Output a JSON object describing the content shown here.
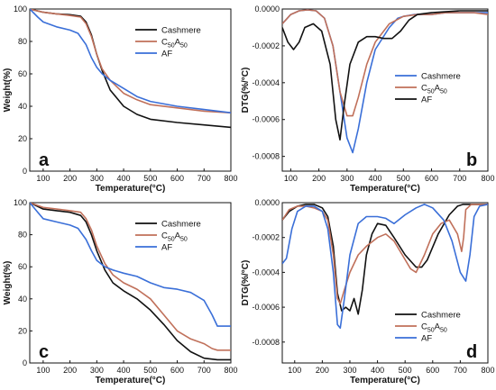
{
  "chart_data": [
    {
      "type": "line",
      "panel_label": "a",
      "xlabel": "Temperature(°C)",
      "ylabel": "Weight(%)",
      "xlim": [
        50,
        800
      ],
      "ylim": [
        0,
        100
      ],
      "xticks": [
        100,
        200,
        300,
        400,
        500,
        600,
        700,
        800
      ],
      "yticks": [
        0,
        20,
        40,
        60,
        80,
        100
      ],
      "legend_position": "top-right",
      "series": [
        {
          "name": "Cashmere",
          "color": "#111111",
          "x": [
            50,
            100,
            150,
            200,
            240,
            260,
            280,
            300,
            320,
            350,
            400,
            450,
            500,
            600,
            700,
            800
          ],
          "y": [
            100,
            98,
            97,
            96.5,
            95.5,
            92,
            84,
            72,
            62,
            50,
            40,
            35,
            32,
            30,
            28.5,
            27
          ]
        },
        {
          "name": "C50A50",
          "name_main": "C",
          "name_sub1": "50",
          "name_mid": "A",
          "name_sub2": "50",
          "color": "#c0705a",
          "x": [
            50,
            100,
            150,
            200,
            240,
            260,
            280,
            300,
            320,
            350,
            400,
            450,
            500,
            600,
            700,
            800
          ],
          "y": [
            100,
            98,
            97,
            96,
            95,
            91,
            83,
            72,
            63,
            56,
            48,
            44,
            41,
            39,
            37,
            36
          ]
        },
        {
          "name": "AF",
          "color": "#3a6fd8",
          "x": [
            50,
            80,
            100,
            150,
            200,
            230,
            260,
            280,
            300,
            320,
            350,
            400,
            450,
            500,
            600,
            700,
            800
          ],
          "y": [
            100,
            95,
            92,
            89,
            87,
            85,
            78,
            70,
            64,
            60,
            56,
            51,
            46,
            43,
            40,
            38,
            36
          ]
        }
      ]
    },
    {
      "type": "line",
      "panel_label": "b",
      "xlabel": "Temperature(°C)",
      "ylabel": "DTG(%/°C)",
      "xlim": [
        70,
        800
      ],
      "ylim": [
        -0.00088,
        0
      ],
      "xticks": [
        100,
        200,
        300,
        400,
        500,
        600,
        700,
        800
      ],
      "yticks": [
        0.0,
        -0.0002,
        -0.0004,
        -0.0006,
        -0.0008
      ],
      "ytick_labels": [
        "0.0000",
        "-0.0002",
        "-0.0004",
        "-0.0006",
        "-0.0008"
      ],
      "legend_position": "middle-right",
      "series": [
        {
          "name": "Cashmere",
          "color": "#3a6fd8",
          "x": [
            70,
            100,
            130,
            160,
            190,
            220,
            250,
            280,
            300,
            320,
            340,
            370,
            400,
            450,
            480,
            500,
            540,
            600,
            650,
            700,
            750,
            800
          ],
          "y": [
            -8e-05,
            -3e-05,
            -1e-05,
            -5e-06,
            -1e-05,
            -5e-05,
            -0.0002,
            -0.0005,
            -0.0007,
            -0.00078,
            -0.00065,
            -0.0004,
            -0.00022,
            -0.0001,
            -5e-05,
            -4e-05,
            -3e-05,
            -3e-05,
            -2e-05,
            -2e-05,
            -2e-05,
            -2e-05
          ]
        },
        {
          "name": "C50A50",
          "name_main": "C",
          "name_sub1": "50",
          "name_mid": "A",
          "name_sub2": "50",
          "color": "#c0705a",
          "x": [
            70,
            100,
            130,
            160,
            190,
            220,
            250,
            275,
            300,
            320,
            340,
            370,
            400,
            450,
            500,
            550,
            600,
            650,
            700,
            750,
            800
          ],
          "y": [
            -8e-05,
            -3e-05,
            -1e-05,
            -5e-06,
            -1e-05,
            -5e-05,
            -0.0002,
            -0.00045,
            -0.00058,
            -0.00058,
            -0.00048,
            -0.0003,
            -0.00018,
            -8e-05,
            -4e-05,
            -3e-05,
            -3e-05,
            -2e-05,
            -2e-05,
            -2e-05,
            -3e-05
          ]
        },
        {
          "name": "AF",
          "color": "#111111",
          "x": [
            70,
            90,
            110,
            130,
            150,
            180,
            210,
            240,
            260,
            275,
            290,
            310,
            340,
            370,
            400,
            430,
            460,
            490,
            520,
            550,
            600,
            700,
            800
          ],
          "y": [
            -0.0001,
            -0.00018,
            -0.00022,
            -0.00018,
            -0.0001,
            -8e-05,
            -0.00012,
            -0.0003,
            -0.0006,
            -0.00071,
            -0.00052,
            -0.0003,
            -0.00018,
            -0.00015,
            -0.00015,
            -0.00016,
            -0.00016,
            -0.00012,
            -6e-05,
            -3e-05,
            -2e-05,
            -1e-05,
            -1e-05
          ]
        }
      ]
    },
    {
      "type": "line",
      "panel_label": "c",
      "xlabel": "Temperature(°C)",
      "ylabel": "Weight(%)",
      "xlim": [
        50,
        800
      ],
      "ylim": [
        0,
        100
      ],
      "xticks": [
        100,
        200,
        300,
        400,
        500,
        600,
        700,
        800
      ],
      "yticks": [
        0,
        20,
        40,
        60,
        80,
        100
      ],
      "legend_position": "top-right",
      "series": [
        {
          "name": "Cashmere",
          "color": "#111111",
          "x": [
            50,
            100,
            150,
            200,
            240,
            260,
            280,
            300,
            330,
            360,
            400,
            450,
            500,
            550,
            600,
            650,
            700,
            750,
            800
          ],
          "y": [
            100,
            96,
            95,
            94,
            92,
            88,
            80,
            70,
            58,
            50,
            45,
            40,
            33,
            24,
            14,
            7,
            3,
            2,
            2
          ]
        },
        {
          "name": "C50A50",
          "name_main": "C",
          "name_sub1": "50",
          "name_mid": "A",
          "name_sub2": "50",
          "color": "#c0705a",
          "x": [
            50,
            100,
            150,
            200,
            240,
            260,
            280,
            300,
            330,
            360,
            400,
            450,
            500,
            550,
            600,
            650,
            700,
            730,
            750,
            800
          ],
          "y": [
            100,
            97,
            96,
            95,
            94,
            90,
            83,
            73,
            62,
            55,
            50,
            46,
            40,
            30,
            20,
            15,
            12,
            9,
            8,
            8
          ]
        },
        {
          "name": "AF",
          "color": "#3a6fd8",
          "x": [
            50,
            80,
            100,
            150,
            200,
            230,
            260,
            280,
            300,
            330,
            360,
            400,
            450,
            500,
            550,
            600,
            650,
            700,
            730,
            750,
            800
          ],
          "y": [
            100,
            94,
            90,
            88,
            86,
            84,
            77,
            70,
            64,
            60,
            58,
            56,
            54,
            50,
            47,
            46,
            44,
            39,
            30,
            23,
            23
          ]
        }
      ]
    },
    {
      "type": "line",
      "panel_label": "d",
      "xlabel": "Temperature(°C)",
      "ylabel": "DTG(%/°C)",
      "xlim": [
        55,
        800
      ],
      "ylim": [
        -0.00092,
        0
      ],
      "xticks": [
        100,
        200,
        300,
        400,
        500,
        600,
        700,
        800
      ],
      "yticks": [
        0.0,
        -0.0002,
        -0.0004,
        -0.0006,
        -0.0008
      ],
      "ytick_labels": [
        "0.0000",
        "-0.0002",
        "-0.0004",
        "-0.0006",
        "-0.0008"
      ],
      "legend_position": "bottom-right",
      "series": [
        {
          "name": "Cashmere",
          "color": "#111111",
          "x": [
            55,
            80,
            110,
            140,
            170,
            200,
            220,
            240,
            255,
            270,
            285,
            300,
            315,
            330,
            345,
            360,
            380,
            400,
            430,
            460,
            500,
            540,
            560,
            580,
            620,
            660,
            690,
            710,
            730,
            760,
            800
          ],
          "y": [
            -0.0001,
            -5e-05,
            -2e-05,
            -1e-05,
            -1e-05,
            -3e-05,
            -8e-05,
            -0.00025,
            -0.00052,
            -0.00062,
            -0.0006,
            -0.00062,
            -0.00055,
            -0.00064,
            -0.0005,
            -0.0003,
            -0.00018,
            -0.00012,
            -0.00013,
            -0.0002,
            -0.0003,
            -0.00037,
            -0.00037,
            -0.00033,
            -0.00018,
            -7e-05,
            -2e-05,
            -1e-05,
            -1e-05,
            -1e-05,
            -1e-05
          ]
        },
        {
          "name": "C50A50",
          "name_main": "C",
          "name_sub1": "50",
          "name_mid": "A",
          "name_sub2": "50",
          "color": "#c0705a",
          "x": [
            55,
            80,
            110,
            140,
            170,
            200,
            220,
            240,
            255,
            265,
            280,
            300,
            330,
            360,
            400,
            430,
            460,
            490,
            520,
            540,
            570,
            600,
            630,
            660,
            690,
            705,
            712,
            720,
            740,
            770,
            800
          ],
          "y": [
            -0.0001,
            -4e-05,
            -2e-05,
            -2e-05,
            -3e-05,
            -5e-05,
            -0.0001,
            -0.0003,
            -0.00055,
            -0.00058,
            -0.0005,
            -0.0004,
            -0.0003,
            -0.00025,
            -0.0002,
            -0.00018,
            -0.00022,
            -0.0003,
            -0.00038,
            -0.0004,
            -0.0003,
            -0.00018,
            -0.00012,
            -0.0001,
            -0.00018,
            -0.00028,
            -0.0002,
            -4e-05,
            -1e-05,
            -1e-05,
            -1e-05
          ]
        },
        {
          "name": "AF",
          "color": "#3a6fd8",
          "x": [
            55,
            70,
            90,
            110,
            140,
            170,
            200,
            220,
            240,
            255,
            265,
            280,
            300,
            330,
            360,
            400,
            430,
            460,
            500,
            540,
            570,
            600,
            640,
            670,
            700,
            720,
            735,
            750,
            770,
            800
          ],
          "y": [
            -0.00035,
            -0.00032,
            -0.00015,
            -5e-05,
            -2e-05,
            -2e-05,
            -5e-05,
            -0.00015,
            -0.0004,
            -0.0007,
            -0.00072,
            -0.00055,
            -0.0003,
            -0.00012,
            -8e-05,
            -8e-05,
            -9e-05,
            -0.00012,
            -7e-05,
            -3e-05,
            -1e-05,
            -3e-05,
            -0.0001,
            -0.00022,
            -0.0004,
            -0.00045,
            -0.0003,
            -8e-05,
            -2e-05,
            -1e-05
          ]
        }
      ]
    }
  ]
}
